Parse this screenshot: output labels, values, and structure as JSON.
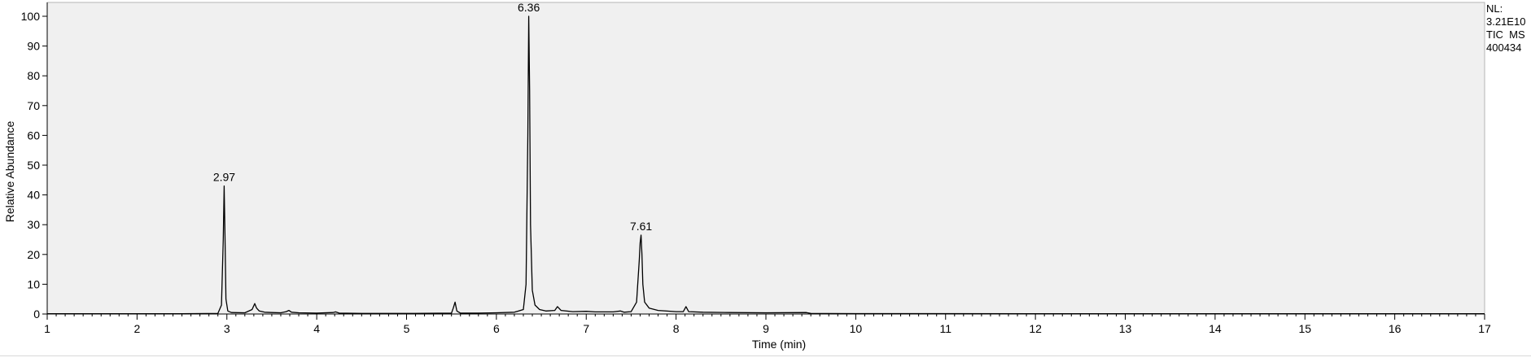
{
  "chart_data": {
    "type": "line",
    "title": "",
    "xlabel": "Time (min)",
    "ylabel": "Relative Abundance",
    "xlim": [
      1,
      17
    ],
    "ylim": [
      0,
      100
    ],
    "x_ticks": [
      1,
      2,
      3,
      4,
      5,
      6,
      7,
      8,
      9,
      10,
      11,
      12,
      13,
      14,
      15,
      16,
      17
    ],
    "y_ticks": [
      0,
      10,
      20,
      30,
      40,
      50,
      60,
      70,
      80,
      90,
      100
    ],
    "grid": false,
    "plot_background": "#f0f0f0",
    "line_color": "#000000",
    "info_text": [
      "NL:",
      "3.21E10",
      "TIC  MS",
      "400434"
    ],
    "peak_labels": [
      {
        "x": 2.97,
        "y": 43,
        "label": "2.97"
      },
      {
        "x": 6.36,
        "y": 100,
        "label": "6.36"
      },
      {
        "x": 7.61,
        "y": 26.5,
        "label": "7.61"
      }
    ],
    "series": [
      {
        "x": [
          1.0,
          2.5,
          2.9,
          2.94,
          2.96,
          2.97,
          2.98,
          2.99,
          3.01,
          3.05,
          3.2,
          3.28,
          3.31,
          3.33,
          3.36,
          3.42,
          3.5,
          3.6,
          3.66,
          3.69,
          3.72,
          3.8,
          4.0,
          4.18,
          4.21,
          4.25,
          4.5,
          5.0,
          5.5,
          5.52,
          5.54,
          5.56,
          5.6,
          5.8,
          6.0,
          6.2,
          6.3,
          6.33,
          6.35,
          6.36,
          6.37,
          6.38,
          6.4,
          6.43,
          6.48,
          6.55,
          6.65,
          6.68,
          6.72,
          6.85,
          7.0,
          7.1,
          7.3,
          7.38,
          7.42,
          7.5,
          7.56,
          7.59,
          7.6,
          7.61,
          7.62,
          7.63,
          7.65,
          7.7,
          7.8,
          8.0,
          8.08,
          8.11,
          8.14,
          8.3,
          8.6,
          9.0,
          9.45,
          9.5,
          10.0,
          12.0,
          14.0,
          17.0
        ],
        "y": [
          0.1,
          0.1,
          0.2,
          3,
          25,
          43,
          25,
          5,
          1,
          0.5,
          0.4,
          1.5,
          3.5,
          2,
          1,
          0.6,
          0.5,
          0.4,
          0.8,
          1.2,
          0.6,
          0.4,
          0.3,
          0.5,
          0.7,
          0.3,
          0.2,
          0.2,
          0.3,
          2,
          4,
          1,
          0.3,
          0.3,
          0.4,
          0.6,
          1.5,
          10,
          60,
          100,
          75,
          30,
          8,
          3,
          1.5,
          1,
          1.2,
          2.5,
          1.2,
          0.8,
          0.9,
          0.7,
          0.7,
          1,
          0.6,
          0.8,
          4,
          18,
          24,
          26.5,
          20,
          10,
          4,
          2,
          1.2,
          0.8,
          0.8,
          2.5,
          0.8,
          0.6,
          0.5,
          0.4,
          0.5,
          0.2,
          0.15,
          0.1,
          0.1,
          0.1
        ]
      }
    ]
  }
}
